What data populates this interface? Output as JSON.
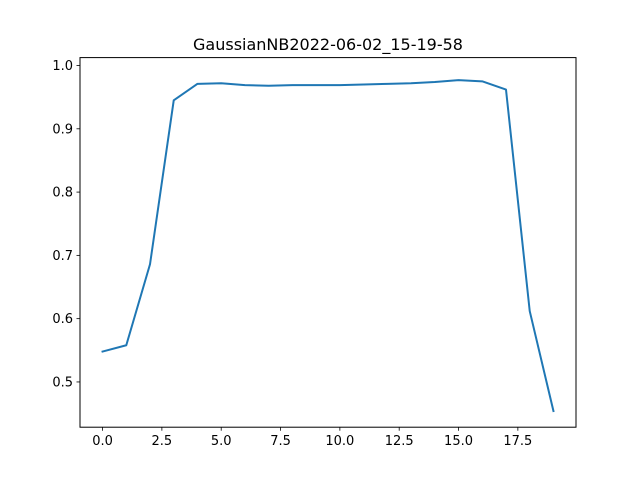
{
  "chart_data": {
    "type": "line",
    "title": "GaussianNB2022-06-02_15-19-58",
    "xlabel": "",
    "ylabel": "",
    "xlim": [
      -0.95,
      19.95
    ],
    "ylim": [
      0.4285,
      1.0125
    ],
    "x_ticks": [
      0,
      2.5,
      5,
      7.5,
      10,
      12.5,
      15,
      17.5
    ],
    "x_tick_labels": [
      "0.0",
      "2.5",
      "5.0",
      "7.5",
      "10.0",
      "12.5",
      "15.0",
      "17.5"
    ],
    "y_ticks": [
      0.5,
      0.6,
      0.7,
      0.8,
      0.9,
      1.0
    ],
    "y_tick_labels": [
      "0.5",
      "0.6",
      "0.7",
      "0.8",
      "0.9",
      "1.0"
    ],
    "grid": false,
    "series": [
      {
        "color": "#1f77b4",
        "x": [
          0,
          1,
          2,
          3,
          4,
          5,
          6,
          7,
          8,
          9,
          10,
          11,
          12,
          13,
          14,
          15,
          16,
          17,
          18,
          19
        ],
        "values": [
          0.548,
          0.558,
          0.686,
          0.945,
          0.971,
          0.972,
          0.969,
          0.968,
          0.969,
          0.969,
          0.969,
          0.97,
          0.971,
          0.972,
          0.974,
          0.977,
          0.975,
          0.962,
          0.612,
          0.454
        ]
      }
    ]
  }
}
